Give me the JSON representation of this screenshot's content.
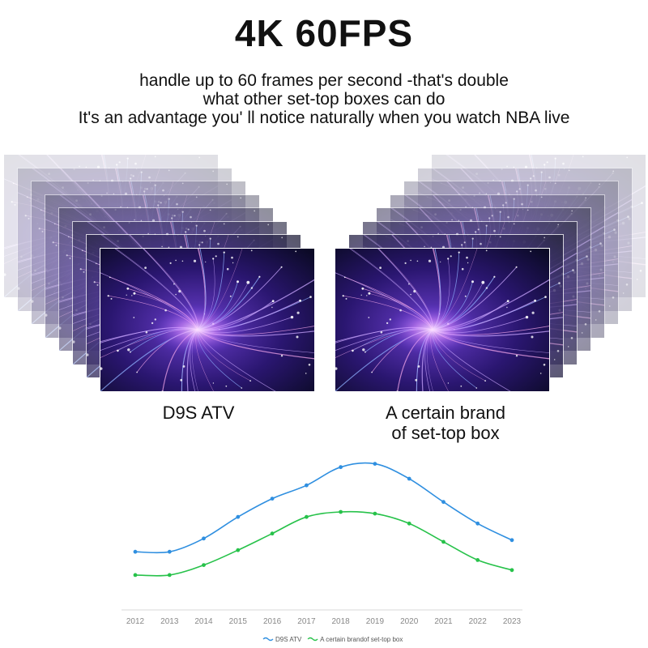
{
  "header": {
    "title": "4K 60FPS",
    "subtitle_lines": [
      "handle up to 60 frames per second -that's double",
      "what other set-top boxes can do",
      "It's an advantage you' ll notice naturally when you watch NBA live"
    ]
  },
  "comparison": {
    "left_caption": "D9S ATV",
    "right_caption_lines": [
      "A certain brand",
      "of set-top box"
    ],
    "left_frame_count": 8,
    "right_frame_count": 8,
    "colors": {
      "frame_purple": "#5a2fd6",
      "frame_glow": "#d88cff"
    }
  },
  "chart_data": {
    "type": "line",
    "categories": [
      "2012",
      "2013",
      "2014",
      "2015",
      "2016",
      "2017",
      "2018",
      "2019",
      "2020",
      "2021",
      "2022",
      "2023"
    ],
    "series": [
      {
        "name": "D9S ATV",
        "color": "#2f8fe0",
        "values": [
          36,
          36,
          44,
          57,
          68,
          76,
          87,
          89,
          80,
          66,
          53,
          43
        ]
      },
      {
        "name": "A certain brandof set-top box",
        "color": "#27c24a",
        "values": [
          22,
          22,
          28,
          37,
          47,
          57,
          60,
          59,
          53,
          42,
          31,
          25
        ]
      }
    ],
    "ylim": [
      0,
      100
    ],
    "grid": false,
    "legend": "bottom-center"
  }
}
